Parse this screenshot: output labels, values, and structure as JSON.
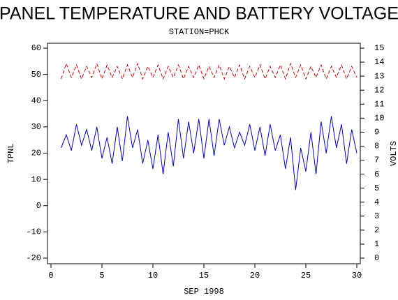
{
  "chart_data": {
    "type": "line",
    "title": "PANEL TEMPERATURE AND BATTERY VOLTAGE",
    "subtitle": "STATION=PHCK",
    "x_label": "SEP 1998",
    "y_label": "TPNL",
    "y2_label": "VOLTS",
    "x": [
      1,
      1.5,
      2,
      2.5,
      3,
      3.5,
      4,
      4.5,
      5,
      5.5,
      6,
      6.5,
      7,
      7.5,
      8,
      8.5,
      9,
      9.5,
      10,
      10.5,
      11,
      11.5,
      12,
      12.5,
      13,
      13.5,
      14,
      14.5,
      15,
      15.5,
      16,
      16.5,
      17,
      17.5,
      18,
      18.5,
      19,
      19.5,
      20,
      20.5,
      21,
      21.5,
      22,
      22.5,
      23,
      23.5,
      24,
      24.5,
      25,
      25.5,
      26,
      26.5,
      27,
      27.5,
      28,
      28.5,
      29,
      29.5,
      30
    ],
    "series": [
      {
        "name": "TPNL",
        "color": "#0000cc",
        "axis": "y",
        "dashed": false,
        "values": [
          22,
          27,
          21,
          31,
          23,
          29,
          21,
          30,
          18,
          26,
          16,
          30,
          17,
          34,
          22,
          29,
          16,
          25,
          14,
          27,
          12,
          28,
          15,
          33,
          18,
          32,
          20,
          33,
          18,
          33,
          19,
          33,
          23,
          30,
          22,
          28,
          23,
          31,
          21,
          30,
          19,
          31,
          21,
          27,
          14,
          26,
          6,
          22,
          13,
          28,
          12,
          32,
          20,
          34,
          22,
          31,
          16,
          29,
          20
        ]
      },
      {
        "name": "VOLTS",
        "color": "#dd0000",
        "axis": "y2",
        "dashed": true,
        "values": [
          12.8,
          13.9,
          12.9,
          13.8,
          12.8,
          13.7,
          12.9,
          13.9,
          12.8,
          13.8,
          12.9,
          13.7,
          12.8,
          13.8,
          12.9,
          13.9,
          12.8,
          13.7,
          12.9,
          13.8,
          12.8,
          13.7,
          12.9,
          13.8,
          12.8,
          13.7,
          12.9,
          13.8,
          12.8,
          13.7,
          12.9,
          13.8,
          12.8,
          13.7,
          12.9,
          13.8,
          12.8,
          13.7,
          12.9,
          13.8,
          12.8,
          13.7,
          12.9,
          13.8,
          12.8,
          13.9,
          12.9,
          13.8,
          12.8,
          13.7,
          12.9,
          13.8,
          12.8,
          13.7,
          12.9,
          13.8,
          12.8,
          13.7,
          12.9
        ]
      }
    ],
    "xlim": [
      0,
      30
    ],
    "xticks": [
      0,
      5,
      10,
      15,
      20,
      25,
      30
    ],
    "ylim": [
      -20,
      60
    ],
    "yticks": [
      -20,
      -10,
      0,
      10,
      20,
      30,
      40,
      50,
      60
    ],
    "y2lim": [
      0,
      15
    ],
    "y2ticks": [
      0,
      1,
      2,
      3,
      4,
      5,
      6,
      7,
      8,
      9,
      10,
      11,
      12,
      13,
      14,
      15
    ]
  }
}
